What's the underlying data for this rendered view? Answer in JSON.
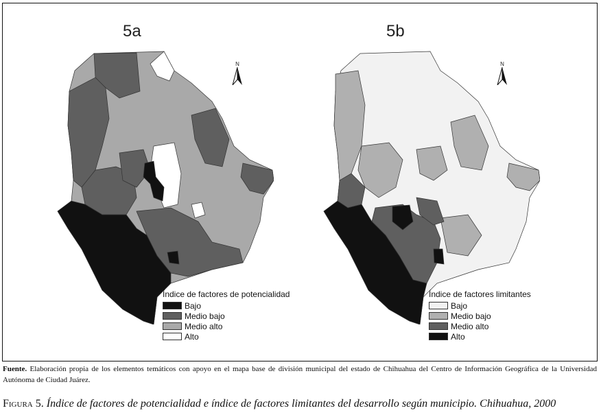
{
  "panels": {
    "a": {
      "title": "5a",
      "legend_title": "Índice de factores de potencialidad",
      "classes": [
        {
          "label": "Bajo",
          "color": "#111111"
        },
        {
          "label": "Medio bajo",
          "color": "#5f5f5f"
        },
        {
          "label": "Medio alto",
          "color": "#a9a9a9"
        },
        {
          "label": "Alto",
          "color": "#ffffff"
        }
      ]
    },
    "b": {
      "title": "5b",
      "legend_title": "Índice de factores limitantes",
      "classes": [
        {
          "label": "Bajo",
          "color": "#f2f2f2"
        },
        {
          "label": "Medio bajo",
          "color": "#b0b0b0"
        },
        {
          "label": "Medio alto",
          "color": "#5f5f5f"
        },
        {
          "label": "Alto",
          "color": "#111111"
        }
      ]
    }
  },
  "north_label": "N",
  "source": {
    "label": "Fuente.",
    "text": "Elaboración propia de los elementos temáticos con apoyo en el mapa base de división municipal del estado de Chihuahua del Centro de Información Geográfica de la Universidad Autónoma de Ciudad Juárez."
  },
  "caption": {
    "figure": "Figura 5.",
    "text": "Índice de factores de potencialidad e índice de factores limitantes del desarrollo según municipio. Chihuahua, 2000"
  }
}
